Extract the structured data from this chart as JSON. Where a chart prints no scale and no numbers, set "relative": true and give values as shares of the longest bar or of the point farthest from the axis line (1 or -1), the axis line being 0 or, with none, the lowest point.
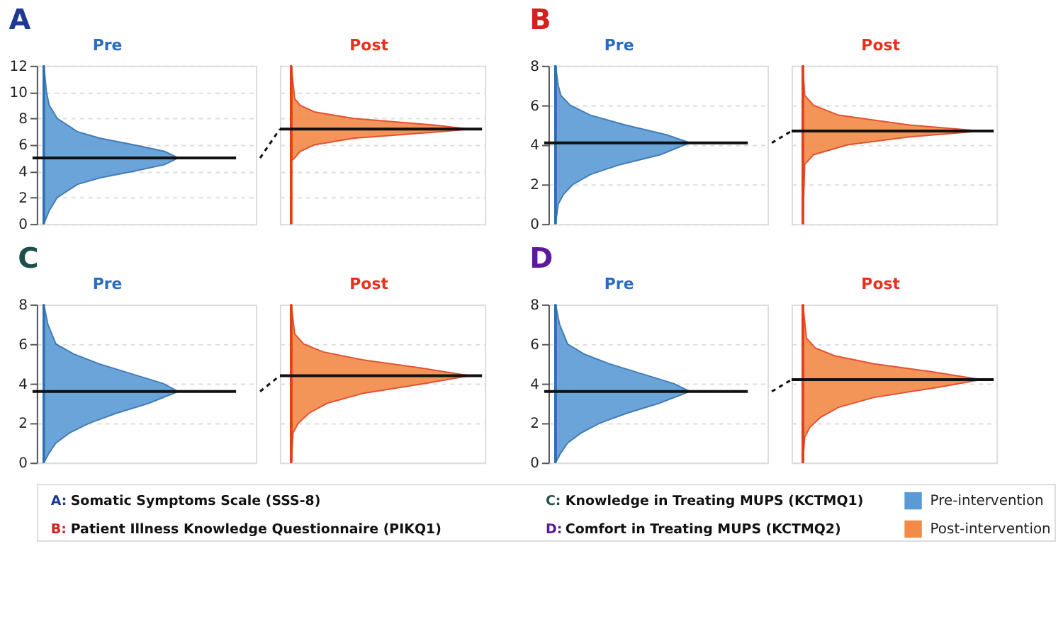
{
  "chart_data": [
    {
      "type": "area",
      "orientation": "horizontal",
      "relative": true,
      "title": "A",
      "ylim": [
        0,
        12
      ],
      "yticks": [
        0,
        2,
        4,
        6,
        8,
        10,
        12
      ],
      "grid": "y",
      "series": [
        {
          "name": "Pre",
          "color": "#5b9bd5",
          "x": [
            0,
            1,
            2,
            3,
            3.5,
            4,
            4.5,
            5,
            5.5,
            6,
            6.5,
            7,
            8,
            9,
            10,
            12
          ],
          "values": [
            0,
            0.04,
            0.1,
            0.25,
            0.42,
            0.67,
            0.9,
            1,
            0.9,
            0.67,
            0.42,
            0.25,
            0.1,
            0.04,
            0.02,
            0
          ]
        }
      ],
      "ref_lines": [
        {
          "axis": "y",
          "value": 5.0
        }
      ]
    },
    {
      "type": "area",
      "orientation": "horizontal",
      "relative": true,
      "ylim": [
        0,
        12
      ],
      "yticks": [
        0,
        2,
        4,
        6,
        8,
        10,
        12
      ],
      "grid": "y",
      "tick_labels": false,
      "series": [
        {
          "name": "Post",
          "color": "#f28a48",
          "x": [
            0,
            4.8,
            5,
            5.5,
            6,
            6.5,
            7,
            7.2,
            7.5,
            8,
            8.5,
            9,
            9.5,
            12
          ],
          "values": [
            0,
            0,
            0.02,
            0.05,
            0.13,
            0.35,
            0.85,
            1,
            0.8,
            0.35,
            0.13,
            0.05,
            0.02,
            0
          ]
        }
      ],
      "ref_lines": [
        {
          "axis": "y",
          "value": 7.2
        }
      ]
    },
    {
      "type": "area",
      "orientation": "horizontal",
      "relative": true,
      "title": "B",
      "ylim": [
        0,
        8
      ],
      "yticks": [
        0,
        2,
        4,
        6,
        8
      ],
      "grid": "y",
      "series": [
        {
          "name": "Pre",
          "color": "#5b9bd5",
          "x": [
            0,
            1,
            1.5,
            2,
            2.5,
            3,
            3.5,
            4.1,
            4.5,
            5,
            5.5,
            6,
            6.5,
            7,
            8
          ],
          "values": [
            0,
            0.02,
            0.06,
            0.13,
            0.26,
            0.48,
            0.78,
            1,
            0.83,
            0.52,
            0.26,
            0.11,
            0.04,
            0.02,
            0
          ]
        }
      ],
      "ref_lines": [
        {
          "axis": "y",
          "value": 4.1
        }
      ]
    },
    {
      "type": "area",
      "orientation": "horizontal",
      "relative": true,
      "ylim": [
        0,
        8
      ],
      "yticks": [
        0,
        2,
        4,
        6,
        8
      ],
      "grid": "y",
      "tick_labels": false,
      "series": [
        {
          "name": "Post",
          "color": "#f28a48",
          "x": [
            0,
            3,
            3.5,
            4,
            4.4,
            4.7,
            5,
            5.5,
            6,
            6.5,
            8
          ],
          "values": [
            0,
            0.01,
            0.06,
            0.25,
            0.6,
            1,
            0.6,
            0.2,
            0.06,
            0.01,
            0
          ]
        }
      ],
      "ref_lines": [
        {
          "axis": "y",
          "value": 4.7
        }
      ]
    },
    {
      "type": "area",
      "orientation": "horizontal",
      "relative": true,
      "title": "C",
      "ylim": [
        0,
        8
      ],
      "yticks": [
        0,
        2,
        4,
        6,
        8
      ],
      "grid": "y",
      "series": [
        {
          "name": "Pre",
          "color": "#5b9bd5",
          "x": [
            0,
            0.5,
            1,
            1.5,
            2,
            2.5,
            3,
            3.6,
            4,
            4.5,
            5,
            5.5,
            6,
            7,
            8
          ],
          "values": [
            0,
            0.04,
            0.09,
            0.19,
            0.34,
            0.54,
            0.78,
            1,
            0.89,
            0.65,
            0.41,
            0.22,
            0.09,
            0.03,
            0
          ]
        }
      ],
      "ref_lines": [
        {
          "axis": "y",
          "value": 3.6
        }
      ]
    },
    {
      "type": "area",
      "orientation": "horizontal",
      "relative": true,
      "ylim": [
        0,
        8
      ],
      "yticks": [
        0,
        2,
        4,
        6,
        8
      ],
      "grid": "y",
      "tick_labels": false,
      "series": [
        {
          "name": "Post",
          "color": "#f28a48",
          "x": [
            0,
            1.5,
            2,
            2.5,
            3,
            3.5,
            4,
            4.4,
            4.8,
            5.2,
            5.6,
            6,
            6.5,
            8
          ],
          "values": [
            0,
            0.01,
            0.04,
            0.1,
            0.2,
            0.4,
            0.75,
            1,
            0.72,
            0.4,
            0.18,
            0.07,
            0.02,
            0
          ]
        }
      ],
      "ref_lines": [
        {
          "axis": "y",
          "value": 4.4
        }
      ]
    },
    {
      "type": "area",
      "orientation": "horizontal",
      "relative": true,
      "title": "D",
      "ylim": [
        0,
        8
      ],
      "yticks": [
        0,
        2,
        4,
        6,
        8
      ],
      "grid": "y",
      "series": [
        {
          "name": "Pre",
          "color": "#5b9bd5",
          "x": [
            0,
            0.5,
            1,
            1.5,
            2,
            2.5,
            3,
            3.6,
            4,
            4.5,
            5,
            5.5,
            6,
            7,
            8
          ],
          "values": [
            0,
            0.04,
            0.09,
            0.19,
            0.33,
            0.53,
            0.77,
            1,
            0.88,
            0.64,
            0.4,
            0.21,
            0.09,
            0.03,
            0
          ]
        }
      ],
      "ref_lines": [
        {
          "axis": "y",
          "value": 3.6
        }
      ]
    },
    {
      "type": "area",
      "orientation": "horizontal",
      "relative": true,
      "ylim": [
        0,
        8
      ],
      "yticks": [
        0,
        2,
        4,
        6,
        8
      ],
      "grid": "y",
      "tick_labels": false,
      "series": [
        {
          "name": "Post",
          "color": "#f28a48",
          "x": [
            0,
            1.3,
            1.8,
            2.3,
            2.8,
            3.3,
            3.8,
            4.2,
            4.6,
            5,
            5.4,
            5.8,
            6.3,
            8
          ],
          "values": [
            0,
            0.01,
            0.04,
            0.1,
            0.2,
            0.4,
            0.75,
            1,
            0.72,
            0.4,
            0.18,
            0.07,
            0.02,
            0
          ]
        }
      ],
      "ref_lines": [
        {
          "axis": "y",
          "value": 4.2
        }
      ]
    },
    {
      "type": "other",
      "legend": "right",
      "annotations": [
        "A: Somatic Symptoms Scale (SSS-8)",
        "B: Patient Illness Knowledge Questionnaire (PIKQ1)",
        "C: Knowledge in Treating MUPS (KCTMQ1)",
        "D: Comfort in Treating MUPS (KCTMQ2)"
      ],
      "series": [
        {
          "name": "Pre-intervention",
          "color": "#5b9bd5"
        },
        {
          "name": "Post-intervention",
          "color": "#f28a48"
        }
      ]
    }
  ]
}
